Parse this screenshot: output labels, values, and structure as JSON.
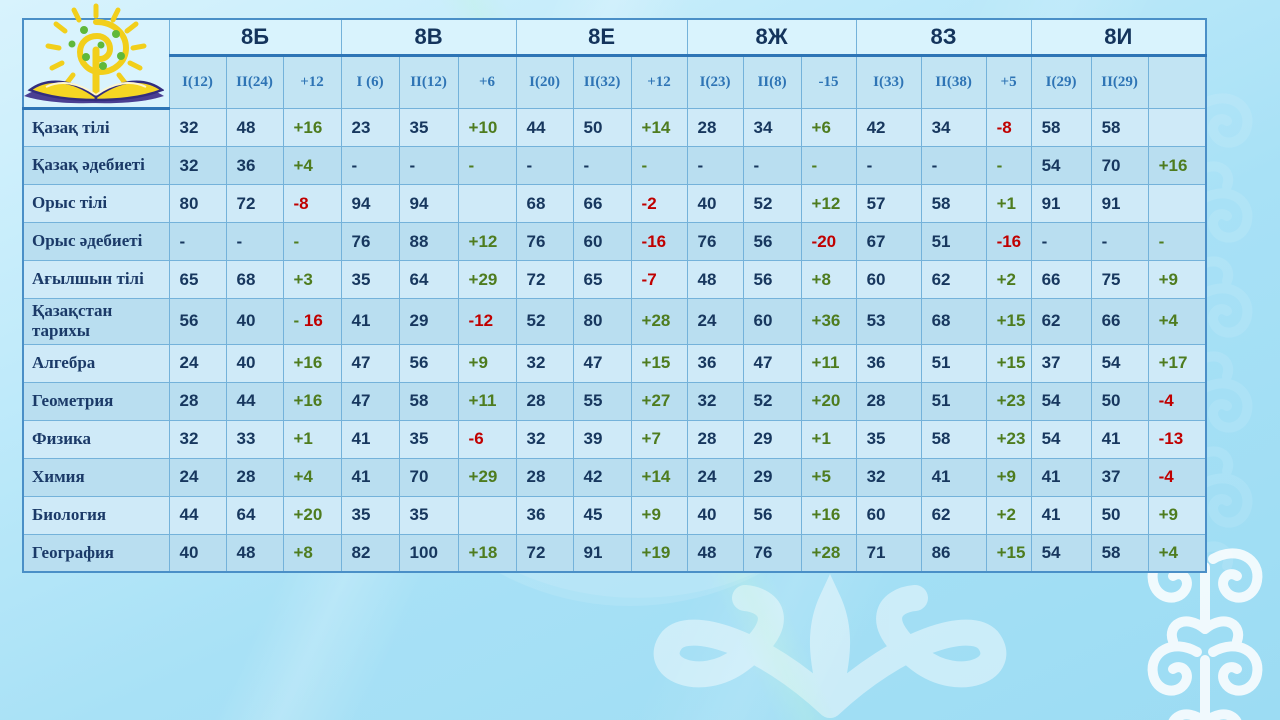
{
  "logo_name": "sun-book-school-logo",
  "colors": {
    "accent_blue": "#2e75b6",
    "text_navy": "#17375e",
    "positive_green": "#4e7c1f",
    "negative_red": "#c00000",
    "row_light": "#cfeaf8",
    "row_dark": "#b9def0"
  },
  "table": {
    "groups": [
      {
        "label": "8Б",
        "cols": [
          {
            "t": "I(12)",
            "c": "b"
          },
          {
            "t": "II(24)",
            "c": "b"
          },
          {
            "t": "+12",
            "c": "g"
          }
        ]
      },
      {
        "label": "8В",
        "cols": [
          {
            "t": "I (6)",
            "c": "b"
          },
          {
            "t": "II(12)",
            "c": "b"
          },
          {
            "t": "+6",
            "c": "g"
          }
        ]
      },
      {
        "label": "8Е",
        "cols": [
          {
            "t": "I(20)",
            "c": "b"
          },
          {
            "t": "II(32)",
            "c": "b"
          },
          {
            "t": "+12",
            "c": "g"
          }
        ]
      },
      {
        "label": "8Ж",
        "cols": [
          {
            "t": "I(23)",
            "c": "b"
          },
          {
            "t": "II(8)",
            "c": "b"
          },
          {
            "t": "-15",
            "c": "r"
          }
        ]
      },
      {
        "label": "8З",
        "cols": [
          {
            "t": "I(33)",
            "c": "b"
          },
          {
            "t": "II(38)",
            "c": "b"
          },
          {
            "t": "+5",
            "c": "g"
          }
        ]
      },
      {
        "label": "8И",
        "cols": [
          {
            "t": "I(29)",
            "c": "b"
          },
          {
            "t": "II(29)",
            "c": "b"
          },
          {
            "t": "",
            "c": "n"
          }
        ]
      }
    ],
    "rows": [
      {
        "subject": "Қазақ тілі",
        "cells": [
          {
            "t": "32"
          },
          {
            "t": "48"
          },
          {
            "t": "+16",
            "c": "g"
          },
          {
            "t": "23"
          },
          {
            "t": "35"
          },
          {
            "t": "+10",
            "c": "g"
          },
          {
            "t": "44"
          },
          {
            "t": "50"
          },
          {
            "t": "+14",
            "c": "g"
          },
          {
            "t": "28"
          },
          {
            "t": "34"
          },
          {
            "t": "+6",
            "c": "g"
          },
          {
            "t": "42"
          },
          {
            "t": "34"
          },
          {
            "t": "-8",
            "c": "r"
          },
          {
            "t": "58"
          },
          {
            "t": "58"
          },
          {
            "t": ""
          }
        ]
      },
      {
        "subject": "Қазақ әдебиеті",
        "cells": [
          {
            "t": "32"
          },
          {
            "t": "36"
          },
          {
            "t": "+4",
            "c": "g"
          },
          {
            "t": "-"
          },
          {
            "t": "-"
          },
          {
            "t": "-",
            "c": "g"
          },
          {
            "t": "-"
          },
          {
            "t": "-"
          },
          {
            "t": "-",
            "c": "g"
          },
          {
            "t": "-"
          },
          {
            "t": "-"
          },
          {
            "t": "-",
            "c": "g"
          },
          {
            "t": "-"
          },
          {
            "t": "-"
          },
          {
            "t": "-",
            "c": "g"
          },
          {
            "t": "54"
          },
          {
            "t": "70"
          },
          {
            "t": "+16",
            "c": "g"
          }
        ]
      },
      {
        "subject": "Орыс тілі",
        "cells": [
          {
            "t": "80"
          },
          {
            "t": "72"
          },
          {
            "t": "-8",
            "c": "r"
          },
          {
            "t": "94"
          },
          {
            "t": "94"
          },
          {
            "t": ""
          },
          {
            "t": "68"
          },
          {
            "t": "66"
          },
          {
            "t": "-2",
            "c": "r"
          },
          {
            "t": "40"
          },
          {
            "t": "52"
          },
          {
            "t": "+12",
            "c": "g"
          },
          {
            "t": "57"
          },
          {
            "t": "58"
          },
          {
            "t": "+1",
            "c": "g"
          },
          {
            "t": "91"
          },
          {
            "t": "91"
          },
          {
            "t": ""
          }
        ]
      },
      {
        "subject": "Орыс әдебиеті",
        "cells": [
          {
            "t": "-"
          },
          {
            "t": "-"
          },
          {
            "t": "-",
            "c": "g"
          },
          {
            "t": "76"
          },
          {
            "t": "88"
          },
          {
            "t": "+12",
            "c": "g"
          },
          {
            "t": "76"
          },
          {
            "t": "60"
          },
          {
            "t": "-16",
            "c": "r"
          },
          {
            "t": "76"
          },
          {
            "t": "56"
          },
          {
            "t": "-20",
            "c": "r"
          },
          {
            "t": "67"
          },
          {
            "t": "51"
          },
          {
            "t": "-16",
            "c": "r"
          },
          {
            "t": "-"
          },
          {
            "t": "-"
          },
          {
            "t": "-",
            "c": "g"
          }
        ]
      },
      {
        "subject": "Ағылшын тілі",
        "cells": [
          {
            "t": "65"
          },
          {
            "t": "68"
          },
          {
            "t": "+3",
            "c": "g"
          },
          {
            "t": "35"
          },
          {
            "t": "64"
          },
          {
            "t": "+29",
            "c": "g"
          },
          {
            "t": "72"
          },
          {
            "t": "65"
          },
          {
            "t": "-7",
            "c": "r"
          },
          {
            "t": "48"
          },
          {
            "t": "56"
          },
          {
            "t": "+8",
            "c": "g"
          },
          {
            "t": "60"
          },
          {
            "t": "62"
          },
          {
            "t": "+2",
            "c": "g"
          },
          {
            "t": "66"
          },
          {
            "t": "75"
          },
          {
            "t": "+9",
            "c": "g"
          }
        ]
      },
      {
        "subject": "Қазақстан тарихы",
        "cells": [
          {
            "t": "56"
          },
          {
            "t": "40"
          },
          {
            "t": "- 16",
            "c": "gr"
          },
          {
            "t": "41"
          },
          {
            "t": "29"
          },
          {
            "t": "-12",
            "c": "r"
          },
          {
            "t": "52"
          },
          {
            "t": "80"
          },
          {
            "t": "+28",
            "c": "g"
          },
          {
            "t": "24"
          },
          {
            "t": "60"
          },
          {
            "t": "+36",
            "c": "g"
          },
          {
            "t": "53"
          },
          {
            "t": "68"
          },
          {
            "t": "+15",
            "c": "g"
          },
          {
            "t": "62"
          },
          {
            "t": "66"
          },
          {
            "t": "+4",
            "c": "g"
          }
        ]
      },
      {
        "subject": "Алгебра",
        "cells": [
          {
            "t": "24"
          },
          {
            "t": "40"
          },
          {
            "t": "+16",
            "c": "g"
          },
          {
            "t": "47"
          },
          {
            "t": "56"
          },
          {
            "t": "+9",
            "c": "g"
          },
          {
            "t": "32"
          },
          {
            "t": "47"
          },
          {
            "t": "+15",
            "c": "g"
          },
          {
            "t": "36"
          },
          {
            "t": "47"
          },
          {
            "t": "+11",
            "c": "g"
          },
          {
            "t": "36"
          },
          {
            "t": "51"
          },
          {
            "t": "+15",
            "c": "g"
          },
          {
            "t": "37"
          },
          {
            "t": "54"
          },
          {
            "t": "+17",
            "c": "g"
          }
        ]
      },
      {
        "subject": "Геометрия",
        "cells": [
          {
            "t": "28"
          },
          {
            "t": "44"
          },
          {
            "t": "+16",
            "c": "g"
          },
          {
            "t": "47"
          },
          {
            "t": "58"
          },
          {
            "t": "+11",
            "c": "g"
          },
          {
            "t": "28"
          },
          {
            "t": "55"
          },
          {
            "t": "+27",
            "c": "g"
          },
          {
            "t": "32"
          },
          {
            "t": "52"
          },
          {
            "t": "+20",
            "c": "g"
          },
          {
            "t": "28"
          },
          {
            "t": "51"
          },
          {
            "t": "+23",
            "c": "g"
          },
          {
            "t": "54"
          },
          {
            "t": "50"
          },
          {
            "t": "-4",
            "c": "r"
          }
        ]
      },
      {
        "subject": "Физика",
        "cells": [
          {
            "t": "32"
          },
          {
            "t": "33"
          },
          {
            "t": "+1",
            "c": "g"
          },
          {
            "t": "41"
          },
          {
            "t": "35"
          },
          {
            "t": "-6",
            "c": "r"
          },
          {
            "t": "32"
          },
          {
            "t": "39"
          },
          {
            "t": "+7",
            "c": "g"
          },
          {
            "t": "28"
          },
          {
            "t": "29"
          },
          {
            "t": "+1",
            "c": "g"
          },
          {
            "t": "35"
          },
          {
            "t": "58"
          },
          {
            "t": "+23",
            "c": "g"
          },
          {
            "t": "54"
          },
          {
            "t": "41"
          },
          {
            "t": "-13",
            "c": "r"
          }
        ]
      },
      {
        "subject": "Химия",
        "cells": [
          {
            "t": "24"
          },
          {
            "t": "28"
          },
          {
            "t": "+4",
            "c": "g"
          },
          {
            "t": "41"
          },
          {
            "t": "70"
          },
          {
            "t": "+29",
            "c": "g"
          },
          {
            "t": "28"
          },
          {
            "t": "42"
          },
          {
            "t": "+14",
            "c": "g"
          },
          {
            "t": "24"
          },
          {
            "t": "29"
          },
          {
            "t": "+5",
            "c": "g"
          },
          {
            "t": "32"
          },
          {
            "t": "41"
          },
          {
            "t": "+9",
            "c": "g"
          },
          {
            "t": "41"
          },
          {
            "t": "37"
          },
          {
            "t": "-4",
            "c": "r"
          }
        ]
      },
      {
        "subject": "Биология",
        "cells": [
          {
            "t": "44"
          },
          {
            "t": "64"
          },
          {
            "t": "+20",
            "c": "g"
          },
          {
            "t": "35"
          },
          {
            "t": "35"
          },
          {
            "t": ""
          },
          {
            "t": "36"
          },
          {
            "t": "45"
          },
          {
            "t": "+9",
            "c": "g"
          },
          {
            "t": "40"
          },
          {
            "t": "56"
          },
          {
            "t": "+16",
            "c": "g"
          },
          {
            "t": "60"
          },
          {
            "t": "62"
          },
          {
            "t": "+2",
            "c": "g"
          },
          {
            "t": "41"
          },
          {
            "t": "50"
          },
          {
            "t": "+9",
            "c": "g"
          }
        ]
      },
      {
        "subject": "География",
        "cells": [
          {
            "t": "40"
          },
          {
            "t": "48"
          },
          {
            "t": "+8",
            "c": "g"
          },
          {
            "t": "82"
          },
          {
            "t": "100"
          },
          {
            "t": "+18",
            "c": "g"
          },
          {
            "t": "72"
          },
          {
            "t": "91"
          },
          {
            "t": "+19",
            "c": "g"
          },
          {
            "t": "48"
          },
          {
            "t": "76"
          },
          {
            "t": "+28",
            "c": "g"
          },
          {
            "t": "71"
          },
          {
            "t": "86"
          },
          {
            "t": "+15",
            "c": "g"
          },
          {
            "t": "54"
          },
          {
            "t": "58"
          },
          {
            "t": "+4",
            "c": "g"
          }
        ]
      }
    ]
  }
}
